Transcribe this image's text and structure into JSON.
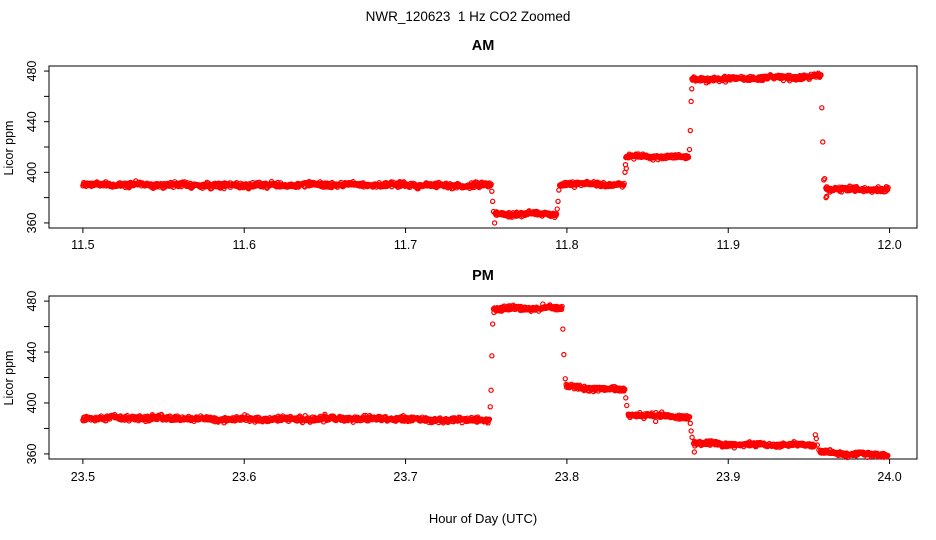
{
  "page": {
    "title": "NWR_120623  1 Hz CO2 Zoomed",
    "xlabel": "Hour of Day (UTC)",
    "background_color": "#FFFFFF",
    "text_color": "#000000",
    "marker_color": "#FF0000"
  },
  "chart_data": [
    {
      "type": "scatter",
      "panel": "AM",
      "title": "AM",
      "ylabel": "Licor ppm",
      "marker": "open-circle",
      "color": "#FF0000",
      "grid": "off",
      "xlim": [
        11.479,
        12.017
      ],
      "ylim": [
        356,
        484
      ],
      "x_ticks": [
        11.5,
        11.6,
        11.7,
        11.8,
        11.9,
        12.0
      ],
      "x_tick_labels": [
        "11.5",
        "11.6",
        "11.7",
        "11.8",
        "11.9",
        "12.0"
      ],
      "y_ticks_labeled": [
        360,
        400,
        440,
        480
      ],
      "y_tick_labels": [
        "360",
        "400",
        "440",
        "480"
      ],
      "y_ticks_minor": [
        380,
        420,
        460
      ],
      "sample_interval_hours": 0.0002778,
      "segments": [
        {
          "x0": 11.5,
          "x1": 11.753,
          "y0": 390.0,
          "y1": 390.0,
          "noise": 1.3
        },
        {
          "x0": 11.7555,
          "x1": 11.7935,
          "y0": 366.5,
          "y1": 367.0,
          "noise": 1.2
        },
        {
          "x0": 11.7955,
          "x1": 11.8355,
          "y0": 390.5,
          "y1": 390.5,
          "noise": 1.2
        },
        {
          "x0": 11.8365,
          "x1": 11.8755,
          "y0": 412.5,
          "y1": 412.5,
          "noise": 1.1
        },
        {
          "x0": 11.8775,
          "x1": 11.9575,
          "y0": 474.0,
          "y1": 475.5,
          "noise": 1.2
        },
        {
          "x0": 11.9605,
          "x1": 11.999,
          "y0": 387.0,
          "y1": 386.5,
          "noise": 1.2
        }
      ],
      "transition_points": [
        [
          11.7535,
          385
        ],
        [
          11.754,
          377
        ],
        [
          11.7545,
          369
        ],
        [
          11.7552,
          360
        ],
        [
          11.794,
          371
        ],
        [
          11.7945,
          377
        ],
        [
          11.795,
          386
        ],
        [
          11.836,
          400
        ],
        [
          11.8363,
          406
        ],
        [
          11.8368,
          403
        ],
        [
          11.876,
          418
        ],
        [
          11.8765,
          433
        ],
        [
          11.877,
          456
        ],
        [
          11.8774,
          466
        ],
        [
          11.958,
          451
        ],
        [
          11.9586,
          424
        ],
        [
          11.9592,
          394
        ],
        [
          11.9598,
          395
        ],
        [
          11.9606,
          380
        ],
        [
          11.961,
          381
        ]
      ]
    },
    {
      "type": "scatter",
      "panel": "PM",
      "title": "PM",
      "ylabel": "Licor ppm",
      "marker": "open-circle",
      "color": "#FF0000",
      "grid": "off",
      "xlim": [
        23.479,
        24.017
      ],
      "ylim": [
        356,
        484
      ],
      "x_ticks": [
        23.5,
        23.6,
        23.7,
        23.8,
        23.9,
        24.0
      ],
      "x_tick_labels": [
        "23.5",
        "23.6",
        "23.7",
        "23.8",
        "23.9",
        "24.0"
      ],
      "y_ticks_labeled": [
        360,
        400,
        440,
        480
      ],
      "y_tick_labels": [
        "360",
        "400",
        "440",
        "480"
      ],
      "y_ticks_minor": [
        380,
        420,
        460
      ],
      "sample_interval_hours": 0.0002778,
      "segments": [
        {
          "x0": 23.5,
          "x1": 23.752,
          "y0": 388.0,
          "y1": 387.0,
          "noise": 1.3
        },
        {
          "x0": 23.7545,
          "x1": 23.797,
          "y0": 473.5,
          "y1": 474.5,
          "noise": 1.2
        },
        {
          "x0": 23.7995,
          "x1": 23.836,
          "y0": 412.5,
          "y1": 410.5,
          "noise": 1.1
        },
        {
          "x0": 23.838,
          "x1": 23.876,
          "y0": 391.0,
          "y1": 389.5,
          "noise": 1.1
        },
        {
          "x0": 23.8785,
          "x1": 23.9535,
          "y0": 368.5,
          "y1": 366.5,
          "noise": 1.1
        },
        {
          "x0": 23.957,
          "x1": 23.999,
          "y0": 361.5,
          "y1": 359.0,
          "noise": 1.1
        }
      ],
      "transition_points": [
        [
          23.7525,
          397
        ],
        [
          23.753,
          410
        ],
        [
          23.7535,
          437
        ],
        [
          23.754,
          462
        ],
        [
          23.7975,
          458
        ],
        [
          23.7981,
          438
        ],
        [
          23.799,
          419
        ],
        [
          23.8365,
          404
        ],
        [
          23.8371,
          398
        ],
        [
          23.8765,
          384
        ],
        [
          23.877,
          378
        ],
        [
          23.8776,
          373
        ],
        [
          23.855,
          385.5
        ],
        [
          23.879,
          361.5
        ],
        [
          23.954,
          375
        ],
        [
          23.9546,
          372
        ],
        [
          23.9552,
          367
        ],
        [
          23.9562,
          363
        ]
      ]
    }
  ]
}
